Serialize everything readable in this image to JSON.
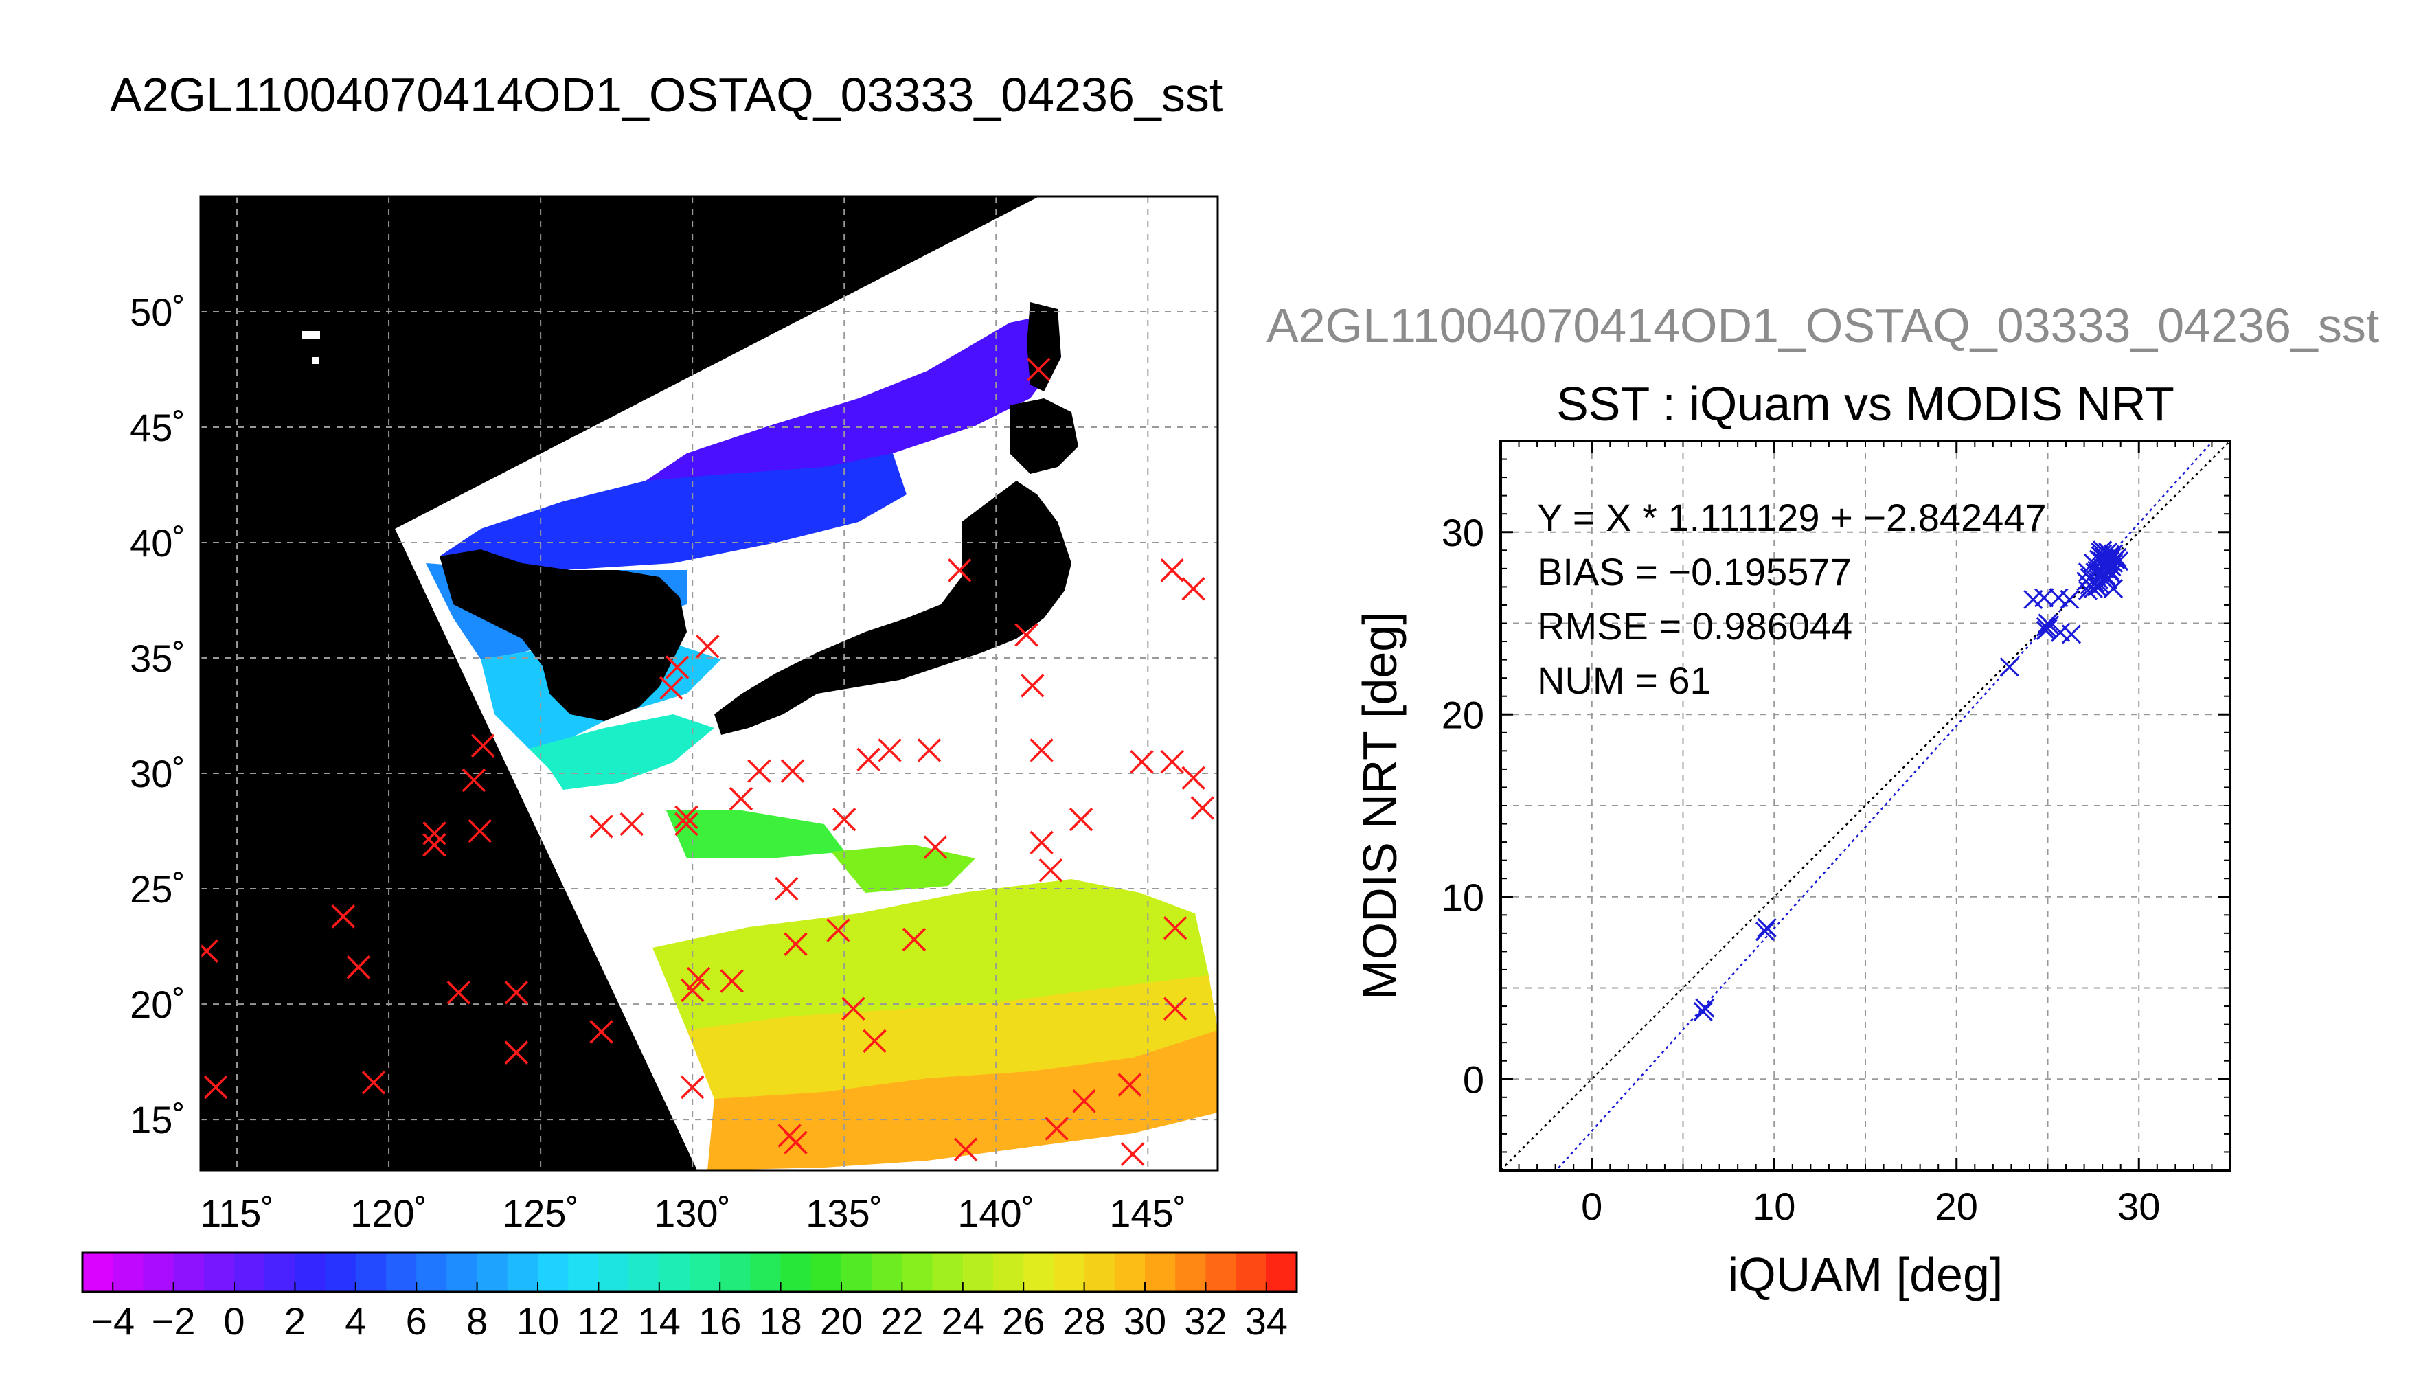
{
  "figure": {
    "main_title": "A2GL11004070414OD1_OSTAQ_03333_04236_sst",
    "sub_title": "A2GL11004070414OD1_OSTAQ_03333_04236_sst"
  },
  "colors": {
    "land": "#000000",
    "cloud": "#ffffff",
    "grid": "#999999",
    "map_marker": "#ff1a1a",
    "scatter_marker": "#1a1ad9",
    "fit_line": "#1a1ad9",
    "identity_line": "#000000",
    "subtitle_text": "#8c8c8c"
  },
  "chart_data": [
    {
      "type": "heatmap",
      "title": "A2GL11004070414OD1_OSTAQ_03333_04236_sst",
      "lon_ticks": [
        115,
        120,
        125,
        130,
        135,
        140,
        145
      ],
      "lat_ticks": [
        15,
        20,
        25,
        30,
        35,
        40,
        45,
        50
      ],
      "lon_labels": [
        "115˚",
        "120˚",
        "125˚",
        "130˚",
        "135˚",
        "140˚",
        "145˚"
      ],
      "lat_labels": [
        "15˚",
        "20˚",
        "25˚",
        "30˚",
        "35˚",
        "40˚",
        "45˚",
        "50˚"
      ],
      "lon_range": [
        113.8,
        147.3
      ],
      "lat_range": [
        12.8,
        55
      ],
      "grid": true,
      "colorbar": {
        "min": -5,
        "max": 35,
        "step": 2,
        "tick_labels": [
          "−4",
          "−2",
          "0",
          "2",
          "4",
          "6",
          "8",
          "10",
          "12",
          "14",
          "16",
          "18",
          "20",
          "22",
          "24",
          "26",
          "28",
          "30",
          "32",
          "34"
        ],
        "tick_values": [
          -4,
          -2,
          0,
          2,
          4,
          6,
          8,
          10,
          12,
          14,
          16,
          18,
          20,
          22,
          24,
          26,
          28,
          30,
          32,
          34
        ]
      },
      "marker": "x",
      "stations": [
        [
          146.5,
          38
        ],
        [
          146.5,
          29.8
        ],
        [
          144.8,
          30.5
        ],
        [
          145.8,
          30.5
        ],
        [
          145.8,
          38.8
        ],
        [
          146.8,
          28.5
        ],
        [
          145.9,
          23.3
        ],
        [
          145.9,
          19.8
        ],
        [
          144.4,
          16.5
        ],
        [
          144.5,
          13.5
        ],
        [
          141.4,
          47.5
        ],
        [
          141.0,
          36
        ],
        [
          141.2,
          33.8
        ],
        [
          141.5,
          31
        ],
        [
          141.5,
          27
        ],
        [
          141.8,
          25.8
        ],
        [
          142.8,
          28
        ],
        [
          142.9,
          15.8
        ],
        [
          142.0,
          14.6
        ],
        [
          138.8,
          38.8
        ],
        [
          137.8,
          31
        ],
        [
          138.0,
          26.8
        ],
        [
          137.3,
          22.8
        ],
        [
          139.0,
          13.7
        ],
        [
          135.3,
          19.8
        ],
        [
          136.0,
          18.4
        ],
        [
          136.5,
          31
        ],
        [
          135.8,
          30.6
        ],
        [
          135.0,
          28
        ],
        [
          133.3,
          30.1
        ],
        [
          134.8,
          23.2
        ],
        [
          133.4,
          22.6
        ],
        [
          133.1,
          25
        ],
        [
          133.4,
          14
        ],
        [
          133.2,
          14.3
        ],
        [
          132.2,
          30.1
        ],
        [
          131.6,
          28.9
        ],
        [
          131.3,
          21
        ],
        [
          130.5,
          35.5
        ],
        [
          129.5,
          34.6
        ],
        [
          130.2,
          21.1
        ],
        [
          130.0,
          20.6
        ],
        [
          129.8,
          27.8
        ],
        [
          130.0,
          16.4
        ],
        [
          129.3,
          33.7
        ],
        [
          129.8,
          28.1
        ],
        [
          128.0,
          27.8
        ],
        [
          127.0,
          27.7
        ],
        [
          127.0,
          18.8
        ],
        [
          123.1,
          31.2
        ],
        [
          122.8,
          29.7
        ],
        [
          123.0,
          27.5
        ],
        [
          121.5,
          27.4
        ],
        [
          121.5,
          26.9
        ],
        [
          122.3,
          20.5
        ],
        [
          124.2,
          20.5
        ],
        [
          124.2,
          17.9
        ],
        [
          118.5,
          23.8
        ],
        [
          119.0,
          21.6
        ],
        [
          119.5,
          16.6
        ],
        [
          114.3,
          16.4
        ],
        [
          114.0,
          22.3
        ]
      ]
    },
    {
      "type": "scatter",
      "subtitle": "A2GL11004070414OD1_OSTAQ_03333_04236_sst",
      "title": "SST : iQuam vs MODIS NRT",
      "xlabel": "iQUAM [deg]",
      "ylabel": "MODIS NRT [deg]",
      "xlim": [
        -5,
        35
      ],
      "ylim": [
        -5,
        35
      ],
      "xticks": [
        0,
        10,
        20,
        30
      ],
      "yticks": [
        0,
        10,
        20,
        30
      ],
      "minor_grid_step": 5,
      "grid": true,
      "marker": "x",
      "annotations": [
        "Y = X * 1.111129 + −2.842447",
        "BIAS = −0.195577",
        "RMSE = 0.986044",
        "NUM = 61"
      ],
      "fit": {
        "slope": 1.111129,
        "intercept": -2.842447
      },
      "points": [
        [
          6.1,
          3.7
        ],
        [
          6.2,
          3.9
        ],
        [
          9.5,
          8.1
        ],
        [
          9.6,
          8.3
        ],
        [
          22.9,
          22.6
        ],
        [
          24.2,
          26.3
        ],
        [
          24.8,
          26.4
        ],
        [
          24.9,
          24.8
        ],
        [
          25.0,
          24.7
        ],
        [
          25.1,
          24.9
        ],
        [
          25.0,
          25.0
        ],
        [
          24.9,
          24.6
        ],
        [
          25.7,
          24.5
        ],
        [
          26.3,
          24.4
        ],
        [
          25.6,
          26.4
        ],
        [
          26.2,
          26.3
        ],
        [
          27.2,
          26.8
        ],
        [
          27.3,
          27.1
        ],
        [
          27.4,
          27.0
        ],
        [
          27.5,
          27.3
        ],
        [
          27.5,
          26.9
        ],
        [
          27.6,
          27.2
        ],
        [
          27.7,
          27.0
        ],
        [
          27.8,
          27.4
        ],
        [
          27.4,
          27.6
        ],
        [
          27.3,
          27.5
        ],
        [
          27.6,
          27.8
        ],
        [
          27.9,
          27.1
        ],
        [
          27.8,
          28.5
        ],
        [
          27.9,
          28.7
        ],
        [
          28.0,
          28.4
        ],
        [
          28.1,
          28.6
        ],
        [
          28.2,
          28.8
        ],
        [
          28.3,
          28.5
        ],
        [
          28.0,
          28.8
        ],
        [
          28.4,
          28.4
        ],
        [
          28.5,
          28.6
        ],
        [
          28.2,
          28.3
        ],
        [
          27.9,
          28.9
        ],
        [
          28.1,
          28.2
        ],
        [
          28.3,
          28.9
        ],
        [
          28.6,
          28.3
        ],
        [
          28.4,
          28.7
        ],
        [
          28.2,
          27.6
        ],
        [
          28.6,
          26.9
        ],
        [
          28.4,
          27.9
        ],
        [
          28.0,
          27.7
        ],
        [
          27.7,
          27.9
        ],
        [
          28.5,
          28.1
        ],
        [
          28.7,
          28.5
        ],
        [
          28.1,
          28.0
        ],
        [
          27.5,
          28.3
        ],
        [
          27.8,
          28.0
        ],
        [
          28.3,
          27.4
        ],
        [
          28.5,
          27.7
        ],
        [
          27.2,
          27.8
        ],
        [
          27.1,
          27.3
        ],
        [
          28.6,
          28.8
        ],
        [
          28.8,
          28.6
        ],
        [
          28.0,
          29.0
        ],
        [
          28.9,
          28.4
        ]
      ]
    }
  ]
}
